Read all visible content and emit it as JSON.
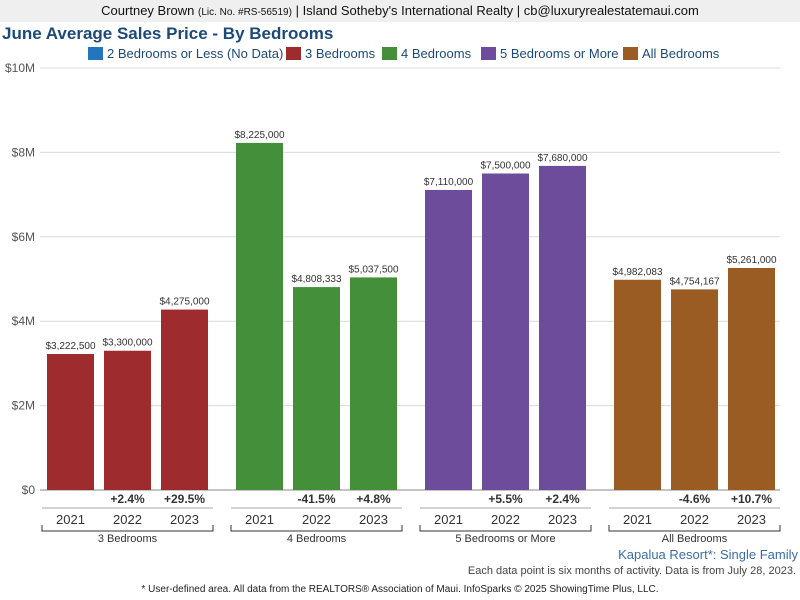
{
  "header": {
    "agent_name": "Courtney Brown",
    "license": "(Lic. No. #RS-56519)",
    "brokerage_and_email": "| Island Sotheby's International Realty | cb@luxuryrealestatemaui.com"
  },
  "title": "June Average Sales Price - By Bedrooms",
  "legend": [
    {
      "label": "2 Bedrooms or Less (No Data)",
      "color": "#2376bd"
    },
    {
      "label": "3 Bedrooms",
      "color": "#9e2b2e"
    },
    {
      "label": "4 Bedrooms",
      "color": "#438f3a"
    },
    {
      "label": "5 Bedrooms or More",
      "color": "#6c4c9b"
    },
    {
      "label": "All Bedrooms",
      "color": "#9b5c24"
    }
  ],
  "chart_data": {
    "type": "bar",
    "ylim": [
      0,
      10000000
    ],
    "y_ticks": [
      {
        "value": 0,
        "label": "$0"
      },
      {
        "value": 2000000,
        "label": "$2M"
      },
      {
        "value": 4000000,
        "label": "$4M"
      },
      {
        "value": 6000000,
        "label": "$6M"
      },
      {
        "value": 8000000,
        "label": "$8M"
      },
      {
        "value": 10000000,
        "label": "$10M"
      }
    ],
    "grid": true,
    "groups": [
      {
        "name": "3 Bedrooms",
        "color": "#9e2b2e",
        "bars": [
          {
            "year": "2021",
            "value": 3222500,
            "label": "$3,222,500",
            "change": ""
          },
          {
            "year": "2022",
            "value": 3300000,
            "label": "$3,300,000",
            "change": "+2.4%"
          },
          {
            "year": "2023",
            "value": 4275000,
            "label": "$4,275,000",
            "change": "+29.5%"
          }
        ]
      },
      {
        "name": "4 Bedrooms",
        "color": "#438f3a",
        "bars": [
          {
            "year": "2021",
            "value": 8225000,
            "label": "$8,225,000",
            "change": ""
          },
          {
            "year": "2022",
            "value": 4808333,
            "label": "$4,808,333",
            "change": "-41.5%"
          },
          {
            "year": "2023",
            "value": 5037500,
            "label": "$5,037,500",
            "change": "+4.8%"
          }
        ]
      },
      {
        "name": "5 Bedrooms or More",
        "color": "#6c4c9b",
        "bars": [
          {
            "year": "2021",
            "value": 7110000,
            "label": "$7,110,000",
            "change": ""
          },
          {
            "year": "2022",
            "value": 7500000,
            "label": "$7,500,000",
            "change": "+5.5%"
          },
          {
            "year": "2023",
            "value": 7680000,
            "label": "$7,680,000",
            "change": "+2.4%"
          }
        ]
      },
      {
        "name": "All Bedrooms",
        "color": "#9b5c24",
        "bars": [
          {
            "year": "2021",
            "value": 4982083,
            "label": "$4,982,083",
            "change": ""
          },
          {
            "year": "2022",
            "value": 4754167,
            "label": "$4,754,167",
            "change": "-4.6%"
          },
          {
            "year": "2023",
            "value": 5261000,
            "label": "$5,261,000",
            "change": "+10.7%"
          }
        ]
      }
    ]
  },
  "footer": {
    "region": "Kapalua Resort*: Single Family",
    "note1": "Each data point is six months of activity. Data is from July 28, 2023.",
    "note2": "* User-defined area. All data from the REALTORS® Association of Maui. InfoSparks © 2025 ShowingTime Plus, LLC."
  }
}
